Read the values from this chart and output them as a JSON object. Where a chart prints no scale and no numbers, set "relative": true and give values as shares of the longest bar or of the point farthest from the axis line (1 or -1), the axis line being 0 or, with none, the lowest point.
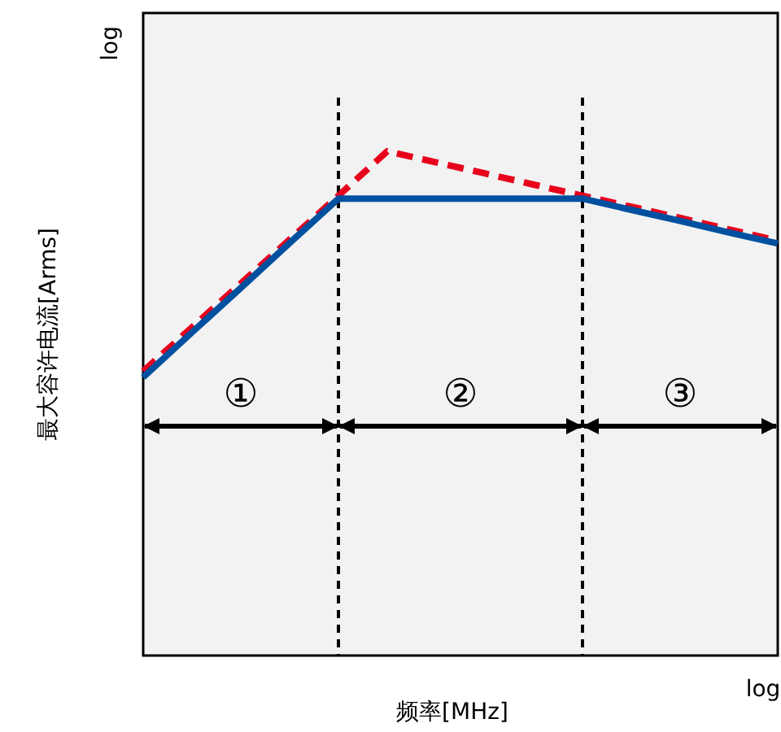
{
  "chart_data": {
    "type": "line",
    "relative": true,
    "xlabel": "频率[MHz]",
    "ylabel": "最大容许电流[Arms]",
    "categories": [
      null,
      null,
      null,
      null,
      null,
      null,
      null,
      null,
      null,
      null,
      null,
      null,
      null,
      null
    ],
    "series": [
      {
        "color": "#e8001c",
        "line_style": "dashed",
        "values": [
          0.564,
          0.651,
          0.738,
          0.825,
          0.912,
          1,
          0.978,
          0.956,
          0.934,
          0.912,
          0.89,
          0.868,
          0.845,
          0.823
        ]
      },
      {
        "color": "#0050a0",
        "line_style": "solid",
        "values": [
          0.552,
          0.641,
          0.729,
          0.818,
          0.906,
          0.906,
          0.906,
          0.906,
          0.906,
          0.906,
          0.884,
          0.862,
          0.839,
          0.817
        ]
      }
    ],
    "annotations": [
      "log",
      "log",
      "①",
      "②",
      "③"
    ]
  }
}
